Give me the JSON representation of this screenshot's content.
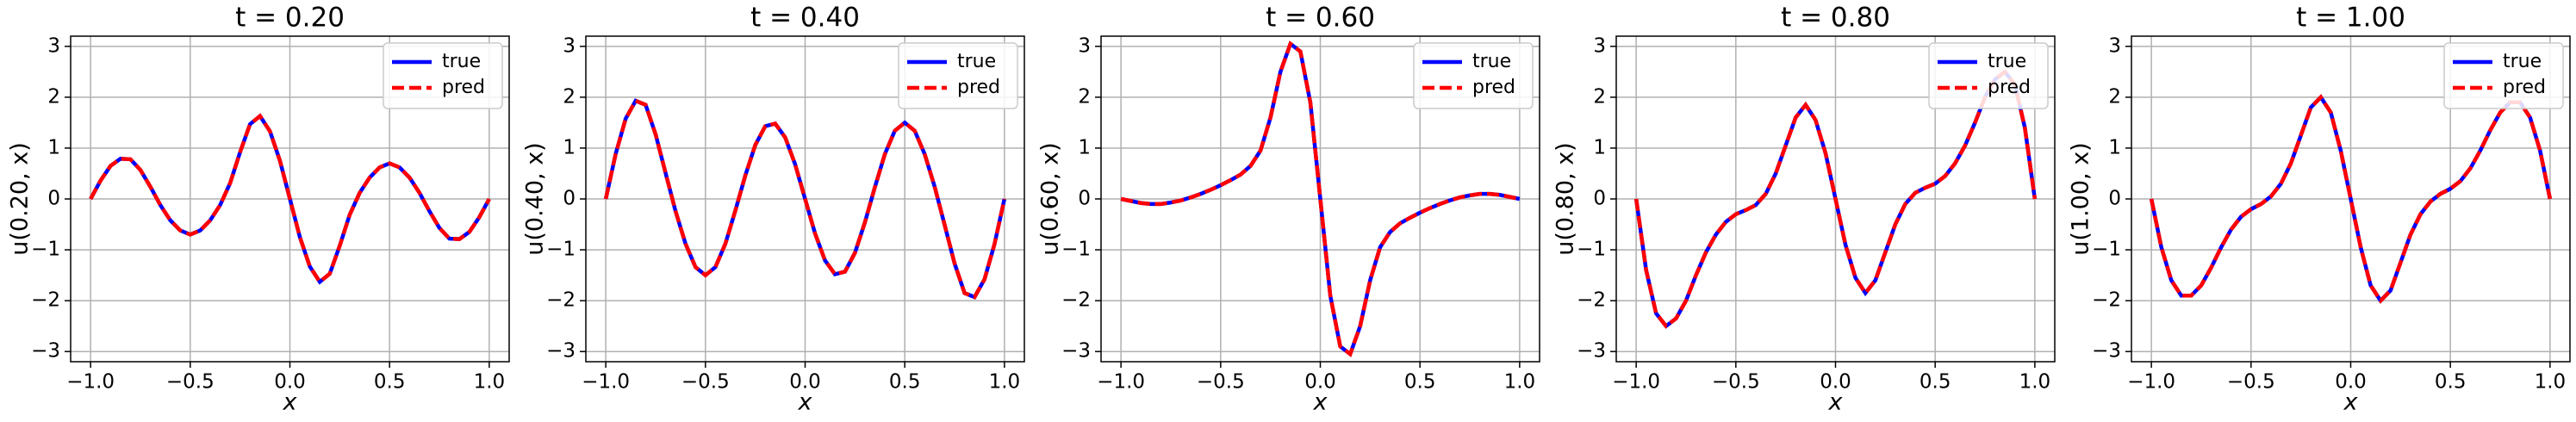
{
  "chart_data": [
    {
      "type": "line",
      "title": "t = 0.20",
      "xlabel": "x",
      "ylabel": "u(0.20, x)",
      "x": [
        -1.0,
        -0.95,
        -0.9,
        -0.85,
        -0.8,
        -0.75,
        -0.7,
        -0.65,
        -0.6,
        -0.55,
        -0.5,
        -0.45,
        -0.4,
        -0.35,
        -0.3,
        -0.25,
        -0.2,
        -0.15,
        -0.1,
        -0.05,
        0.0,
        0.05,
        0.1,
        0.15,
        0.2,
        0.25,
        0.3,
        0.35,
        0.4,
        0.45,
        0.5,
        0.55,
        0.6,
        0.65,
        0.7,
        0.75,
        0.8,
        0.85,
        0.9,
        0.95,
        1.0
      ],
      "series": [
        {
          "name": "true",
          "color": "#0000ff",
          "linestyle": "solid",
          "values": [
            0,
            0.36,
            0.65,
            0.79,
            0.78,
            0.57,
            0.24,
            -0.12,
            -0.42,
            -0.62,
            -0.7,
            -0.62,
            -0.42,
            -0.12,
            0.31,
            0.92,
            1.47,
            1.63,
            1.33,
            0.75,
            0,
            -0.75,
            -1.33,
            -1.63,
            -1.47,
            -0.92,
            -0.31,
            0.12,
            0.42,
            0.62,
            0.7,
            0.62,
            0.42,
            0.12,
            -0.24,
            -0.57,
            -0.78,
            -0.79,
            -0.65,
            -0.36,
            0
          ]
        },
        {
          "name": "pred",
          "color": "#ff0000",
          "linestyle": "dashed",
          "values": [
            0,
            0.36,
            0.65,
            0.79,
            0.78,
            0.57,
            0.24,
            -0.12,
            -0.42,
            -0.62,
            -0.7,
            -0.62,
            -0.42,
            -0.12,
            0.31,
            0.92,
            1.47,
            1.63,
            1.33,
            0.75,
            0,
            -0.75,
            -1.33,
            -1.63,
            -1.47,
            -0.92,
            -0.31,
            0.12,
            0.42,
            0.62,
            0.7,
            0.62,
            0.42,
            0.12,
            -0.24,
            -0.57,
            -0.78,
            -0.79,
            -0.65,
            -0.36,
            0
          ]
        }
      ],
      "xlim": [
        -1.1,
        1.1
      ],
      "xticks": [
        {
          "value": -1.0,
          "label": "−1.0"
        },
        {
          "value": -0.5,
          "label": "−0.5"
        },
        {
          "value": 0.0,
          "label": "0.0"
        },
        {
          "value": 0.5,
          "label": "0.5"
        },
        {
          "value": 1.0,
          "label": "1.0"
        }
      ],
      "ylim": [
        -3.2,
        3.2
      ],
      "yticks": [
        {
          "value": -3,
          "label": "−3"
        },
        {
          "value": -2,
          "label": "−2"
        },
        {
          "value": -1,
          "label": "−1"
        },
        0,
        1,
        2,
        3
      ],
      "grid": true,
      "legend": "upper right"
    },
    {
      "type": "line",
      "title": "t = 0.40",
      "xlabel": "x",
      "ylabel": "u(0.40, x)",
      "x": [
        -1.0,
        -0.95,
        -0.9,
        -0.85,
        -0.8,
        -0.75,
        -0.7,
        -0.65,
        -0.6,
        -0.55,
        -0.5,
        -0.45,
        -0.4,
        -0.35,
        -0.3,
        -0.25,
        -0.2,
        -0.15,
        -0.1,
        -0.05,
        0.0,
        0.05,
        0.1,
        0.15,
        0.2,
        0.25,
        0.3,
        0.35,
        0.4,
        0.45,
        0.5,
        0.55,
        0.6,
        0.65,
        0.7,
        0.75,
        0.8,
        0.85,
        0.9,
        0.95,
        1.0
      ],
      "series": [
        {
          "name": "true",
          "color": "#0000ff",
          "linestyle": "solid",
          "values": [
            0,
            0.89,
            1.58,
            1.93,
            1.85,
            1.27,
            0.51,
            -0.24,
            -0.88,
            -1.34,
            -1.5,
            -1.34,
            -0.88,
            -0.23,
            0.46,
            1.06,
            1.43,
            1.48,
            1.21,
            0.68,
            0,
            -0.68,
            -1.21,
            -1.48,
            -1.43,
            -1.06,
            -0.46,
            0.23,
            0.88,
            1.34,
            1.5,
            1.34,
            0.88,
            0.24,
            -0.51,
            -1.27,
            -1.85,
            -1.93,
            -1.58,
            -0.89,
            0
          ]
        },
        {
          "name": "pred",
          "color": "#ff0000",
          "linestyle": "dashed",
          "values": [
            0,
            0.89,
            1.58,
            1.93,
            1.85,
            1.27,
            0.51,
            -0.24,
            -0.88,
            -1.34,
            -1.5,
            -1.34,
            -0.88,
            -0.23,
            0.46,
            1.06,
            1.43,
            1.48,
            1.21,
            0.68,
            0,
            -0.68,
            -1.21,
            -1.48,
            -1.43,
            -1.06,
            -0.46,
            0.23,
            0.88,
            1.34,
            1.5,
            1.34,
            0.88,
            0.24,
            -0.51,
            -1.27,
            -1.85,
            -1.93,
            -1.58,
            -0.89,
            0
          ]
        }
      ],
      "xlim": [
        -1.1,
        1.1
      ],
      "xticks": [
        {
          "value": -1.0,
          "label": "−1.0"
        },
        {
          "value": -0.5,
          "label": "−0.5"
        },
        {
          "value": 0.0,
          "label": "0.0"
        },
        {
          "value": 0.5,
          "label": "0.5"
        },
        {
          "value": 1.0,
          "label": "1.0"
        }
      ],
      "ylim": [
        -3.2,
        3.2
      ],
      "yticks": [
        {
          "value": -3,
          "label": "−3"
        },
        {
          "value": -2,
          "label": "−2"
        },
        {
          "value": -1,
          "label": "−1"
        },
        0,
        1,
        2,
        3
      ],
      "grid": true,
      "legend": "upper right"
    },
    {
      "type": "line",
      "title": "t = 0.60",
      "xlabel": "x",
      "ylabel": "u(0.60, x)",
      "x": [
        -1.0,
        -0.95,
        -0.9,
        -0.85,
        -0.8,
        -0.75,
        -0.7,
        -0.65,
        -0.6,
        -0.55,
        -0.5,
        -0.45,
        -0.4,
        -0.35,
        -0.3,
        -0.25,
        -0.2,
        -0.15,
        -0.1,
        -0.05,
        0.0,
        0.05,
        0.1,
        0.15,
        0.2,
        0.25,
        0.3,
        0.35,
        0.4,
        0.45,
        0.5,
        0.55,
        0.6,
        0.65,
        0.7,
        0.75,
        0.8,
        0.85,
        0.9,
        0.95,
        1.0
      ],
      "series": [
        {
          "name": "true",
          "color": "#0000ff",
          "linestyle": "solid",
          "values": [
            0,
            -0.04,
            -0.08,
            -0.1,
            -0.1,
            -0.07,
            -0.03,
            0.03,
            0.1,
            0.18,
            0.27,
            0.37,
            0.48,
            0.65,
            0.95,
            1.6,
            2.5,
            3.05,
            2.9,
            1.9,
            0,
            -1.9,
            -2.9,
            -3.05,
            -2.5,
            -1.6,
            -0.95,
            -0.65,
            -0.48,
            -0.37,
            -0.27,
            -0.18,
            -0.1,
            -0.03,
            0.03,
            0.07,
            0.1,
            0.1,
            0.08,
            0.04,
            0
          ]
        },
        {
          "name": "pred",
          "color": "#ff0000",
          "linestyle": "dashed",
          "values": [
            0,
            -0.04,
            -0.08,
            -0.1,
            -0.1,
            -0.07,
            -0.03,
            0.03,
            0.1,
            0.18,
            0.27,
            0.37,
            0.48,
            0.65,
            0.95,
            1.6,
            2.5,
            3.05,
            2.9,
            1.9,
            0,
            -1.9,
            -2.9,
            -3.05,
            -2.5,
            -1.6,
            -0.95,
            -0.65,
            -0.48,
            -0.37,
            -0.27,
            -0.18,
            -0.1,
            -0.03,
            0.03,
            0.07,
            0.1,
            0.1,
            0.08,
            0.04,
            0
          ]
        }
      ],
      "xlim": [
        -1.1,
        1.1
      ],
      "xticks": [
        {
          "value": -1.0,
          "label": "−1.0"
        },
        {
          "value": -0.5,
          "label": "−0.5"
        },
        {
          "value": 0.0,
          "label": "0.0"
        },
        {
          "value": 0.5,
          "label": "0.5"
        },
        {
          "value": 1.0,
          "label": "1.0"
        }
      ],
      "ylim": [
        -3.2,
        3.2
      ],
      "yticks": [
        {
          "value": -3,
          "label": "−3"
        },
        {
          "value": -2,
          "label": "−2"
        },
        {
          "value": -1,
          "label": "−1"
        },
        0,
        1,
        2,
        3
      ],
      "grid": true,
      "legend": "upper right"
    },
    {
      "type": "line",
      "title": "t = 0.80",
      "xlabel": "x",
      "ylabel": "u(0.80, x)",
      "x": [
        -1.0,
        -0.95,
        -0.9,
        -0.85,
        -0.8,
        -0.75,
        -0.7,
        -0.65,
        -0.6,
        -0.55,
        -0.5,
        -0.45,
        -0.4,
        -0.35,
        -0.3,
        -0.25,
        -0.2,
        -0.15,
        -0.1,
        -0.05,
        0.0,
        0.05,
        0.1,
        0.15,
        0.2,
        0.25,
        0.3,
        0.35,
        0.4,
        0.45,
        0.5,
        0.55,
        0.6,
        0.65,
        0.7,
        0.75,
        0.8,
        0.85,
        0.9,
        0.95,
        1.0
      ],
      "series": [
        {
          "name": "true",
          "color": "#0000ff",
          "linestyle": "solid",
          "values": [
            0,
            -1.4,
            -2.25,
            -2.5,
            -2.35,
            -2.0,
            -1.5,
            -1.05,
            -0.7,
            -0.45,
            -0.3,
            -0.22,
            -0.12,
            0.1,
            0.5,
            1.05,
            1.6,
            1.85,
            1.55,
            0.9,
            0,
            -0.9,
            -1.55,
            -1.85,
            -1.6,
            -1.05,
            -0.5,
            -0.1,
            0.12,
            0.22,
            0.3,
            0.45,
            0.7,
            1.05,
            1.5,
            2.0,
            2.35,
            2.5,
            2.25,
            1.4,
            0
          ]
        },
        {
          "name": "pred",
          "color": "#ff0000",
          "linestyle": "dashed",
          "values": [
            0,
            -1.4,
            -2.25,
            -2.5,
            -2.35,
            -2.0,
            -1.5,
            -1.05,
            -0.7,
            -0.45,
            -0.3,
            -0.22,
            -0.12,
            0.1,
            0.5,
            1.05,
            1.6,
            1.85,
            1.55,
            0.9,
            0,
            -0.9,
            -1.55,
            -1.85,
            -1.6,
            -1.05,
            -0.5,
            -0.1,
            0.12,
            0.22,
            0.3,
            0.45,
            0.7,
            1.05,
            1.5,
            2.0,
            2.35,
            2.5,
            2.25,
            1.4,
            0
          ]
        }
      ],
      "xlim": [
        -1.1,
        1.1
      ],
      "xticks": [
        {
          "value": -1.0,
          "label": "−1.0"
        },
        {
          "value": -0.5,
          "label": "−0.5"
        },
        {
          "value": 0.0,
          "label": "0.0"
        },
        {
          "value": 0.5,
          "label": "0.5"
        },
        {
          "value": 1.0,
          "label": "1.0"
        }
      ],
      "ylim": [
        -3.2,
        3.2
      ],
      "yticks": [
        {
          "value": -3,
          "label": "−3"
        },
        {
          "value": -2,
          "label": "−2"
        },
        {
          "value": -1,
          "label": "−1"
        },
        0,
        1,
        2,
        3
      ],
      "grid": true,
      "legend": "upper right"
    },
    {
      "type": "line",
      "title": "t = 1.00",
      "xlabel": "x",
      "ylabel": "u(1.00, x)",
      "x": [
        -1.0,
        -0.95,
        -0.9,
        -0.85,
        -0.8,
        -0.75,
        -0.7,
        -0.65,
        -0.6,
        -0.55,
        -0.5,
        -0.45,
        -0.4,
        -0.35,
        -0.3,
        -0.25,
        -0.2,
        -0.15,
        -0.1,
        -0.05,
        0.0,
        0.05,
        0.1,
        0.15,
        0.2,
        0.25,
        0.3,
        0.35,
        0.4,
        0.45,
        0.5,
        0.55,
        0.6,
        0.65,
        0.7,
        0.75,
        0.8,
        0.85,
        0.9,
        0.95,
        1.0
      ],
      "series": [
        {
          "name": "true",
          "color": "#0000ff",
          "linestyle": "solid",
          "values": [
            0,
            -0.95,
            -1.6,
            -1.9,
            -1.9,
            -1.7,
            -1.35,
            -0.95,
            -0.6,
            -0.35,
            -0.2,
            -0.1,
            0.05,
            0.3,
            0.7,
            1.25,
            1.8,
            2.0,
            1.7,
            0.95,
            0,
            -0.95,
            -1.7,
            -2.0,
            -1.8,
            -1.25,
            -0.7,
            -0.3,
            -0.05,
            0.1,
            0.2,
            0.35,
            0.6,
            0.95,
            1.35,
            1.7,
            1.9,
            1.9,
            1.6,
            0.95,
            0
          ]
        },
        {
          "name": "pred",
          "color": "#ff0000",
          "linestyle": "dashed",
          "values": [
            0,
            -0.95,
            -1.6,
            -1.9,
            -1.9,
            -1.7,
            -1.35,
            -0.95,
            -0.6,
            -0.35,
            -0.2,
            -0.1,
            0.05,
            0.3,
            0.7,
            1.25,
            1.8,
            2.0,
            1.7,
            0.95,
            0,
            -0.95,
            -1.7,
            -2.0,
            -1.8,
            -1.25,
            -0.7,
            -0.3,
            -0.05,
            0.1,
            0.2,
            0.35,
            0.6,
            0.95,
            1.35,
            1.7,
            1.9,
            1.9,
            1.6,
            0.95,
            0
          ]
        }
      ],
      "xlim": [
        -1.1,
        1.1
      ],
      "xticks": [
        {
          "value": -1.0,
          "label": "−1.0"
        },
        {
          "value": -0.5,
          "label": "−0.5"
        },
        {
          "value": 0.0,
          "label": "0.0"
        },
        {
          "value": 0.5,
          "label": "0.5"
        },
        {
          "value": 1.0,
          "label": "1.0"
        }
      ],
      "ylim": [
        -3.2,
        3.2
      ],
      "yticks": [
        {
          "value": -3,
          "label": "−3"
        },
        {
          "value": -2,
          "label": "−2"
        },
        {
          "value": -1,
          "label": "−1"
        },
        0,
        1,
        2,
        3
      ],
      "grid": true,
      "legend": "upper right"
    }
  ]
}
